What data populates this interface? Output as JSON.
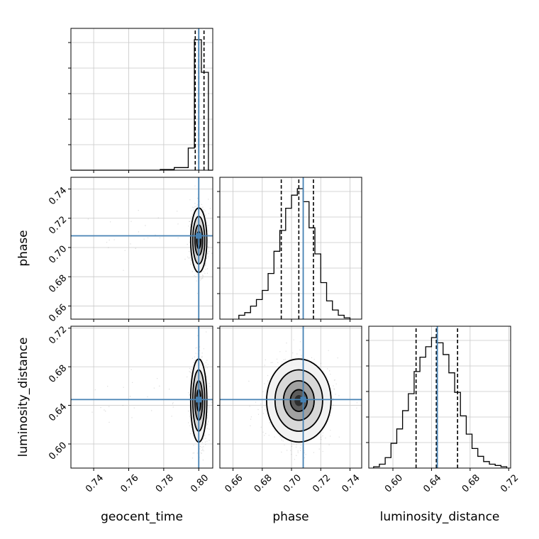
{
  "chart_data": {
    "type": "corner",
    "parameters": [
      "geocent_time",
      "phase",
      "luminosity_distance"
    ],
    "truth": {
      "geocent_time": 0.8,
      "phase": 0.708,
      "luminosity_distance": 0.646
    },
    "colors": {
      "truth": "#4682b4",
      "hist": "#000000",
      "grid": "#c8c8c8"
    },
    "grid": true,
    "axes": {
      "geocent_time": {
        "xlim": [
          0.727,
          0.808
        ],
        "xticks": [
          "0.74",
          "0.76",
          "0.78",
          "0.80"
        ]
      },
      "phase": {
        "lim": [
          0.651,
          0.748
        ],
        "ticks": [
          "0.66",
          "0.68",
          "0.70",
          "0.72",
          "0.74"
        ]
      },
      "luminosity_distance": {
        "lim": [
          0.575,
          0.722
        ],
        "ticks": [
          "0.60",
          "0.64",
          "0.68",
          "0.72"
        ]
      }
    },
    "histograms": {
      "geocent_time": {
        "quantiles": [
          0.798,
          0.8,
          0.803
        ],
        "bins": [
          {
            "x0": 0.778,
            "x1": 0.786,
            "h": 0.005
          },
          {
            "x0": 0.786,
            "x1": 0.794,
            "h": 0.02
          },
          {
            "x0": 0.794,
            "x1": 0.7975,
            "h": 0.17
          },
          {
            "x0": 0.7975,
            "x1": 0.8015,
            "h": 1.0
          },
          {
            "x0": 0.8015,
            "x1": 0.8055,
            "h": 0.75
          },
          {
            "x0": 0.8055,
            "x1": 0.808,
            "h": 0.0
          }
        ]
      },
      "phase": {
        "quantiles": [
          0.693,
          0.705,
          0.715
        ],
        "bins": [
          {
            "x0": 0.664,
            "x1": 0.668,
            "h": 0.03
          },
          {
            "x0": 0.668,
            "x1": 0.672,
            "h": 0.05
          },
          {
            "x0": 0.672,
            "x1": 0.676,
            "h": 0.1
          },
          {
            "x0": 0.676,
            "x1": 0.68,
            "h": 0.15
          },
          {
            "x0": 0.68,
            "x1": 0.684,
            "h": 0.22
          },
          {
            "x0": 0.684,
            "x1": 0.688,
            "h": 0.35
          },
          {
            "x0": 0.688,
            "x1": 0.692,
            "h": 0.52
          },
          {
            "x0": 0.692,
            "x1": 0.696,
            "h": 0.68
          },
          {
            "x0": 0.696,
            "x1": 0.7,
            "h": 0.85
          },
          {
            "x0": 0.7,
            "x1": 0.704,
            "h": 0.95
          },
          {
            "x0": 0.704,
            "x1": 0.708,
            "h": 1.0
          },
          {
            "x0": 0.708,
            "x1": 0.712,
            "h": 0.9
          },
          {
            "x0": 0.712,
            "x1": 0.716,
            "h": 0.7
          },
          {
            "x0": 0.716,
            "x1": 0.72,
            "h": 0.5
          },
          {
            "x0": 0.72,
            "x1": 0.724,
            "h": 0.28
          },
          {
            "x0": 0.724,
            "x1": 0.728,
            "h": 0.14
          },
          {
            "x0": 0.728,
            "x1": 0.732,
            "h": 0.07
          },
          {
            "x0": 0.732,
            "x1": 0.736,
            "h": 0.03
          },
          {
            "x0": 0.736,
            "x1": 0.74,
            "h": 0.01
          }
        ]
      },
      "luminosity_distance": {
        "quantiles": [
          0.624,
          0.645,
          0.667
        ],
        "bins": [
          {
            "x0": 0.58,
            "x1": 0.586,
            "h": 0.01
          },
          {
            "x0": 0.586,
            "x1": 0.592,
            "h": 0.03
          },
          {
            "x0": 0.592,
            "x1": 0.598,
            "h": 0.08
          },
          {
            "x0": 0.598,
            "x1": 0.604,
            "h": 0.19
          },
          {
            "x0": 0.604,
            "x1": 0.61,
            "h": 0.3
          },
          {
            "x0": 0.61,
            "x1": 0.616,
            "h": 0.44
          },
          {
            "x0": 0.616,
            "x1": 0.622,
            "h": 0.57
          },
          {
            "x0": 0.622,
            "x1": 0.628,
            "h": 0.74
          },
          {
            "x0": 0.628,
            "x1": 0.634,
            "h": 0.85
          },
          {
            "x0": 0.634,
            "x1": 0.64,
            "h": 0.93
          },
          {
            "x0": 0.64,
            "x1": 0.646,
            "h": 1.0
          },
          {
            "x0": 0.646,
            "x1": 0.652,
            "h": 0.96
          },
          {
            "x0": 0.652,
            "x1": 0.658,
            "h": 0.87
          },
          {
            "x0": 0.658,
            "x1": 0.664,
            "h": 0.73
          },
          {
            "x0": 0.664,
            "x1": 0.67,
            "h": 0.58
          },
          {
            "x0": 0.67,
            "x1": 0.676,
            "h": 0.4
          },
          {
            "x0": 0.676,
            "x1": 0.682,
            "h": 0.26
          },
          {
            "x0": 0.682,
            "x1": 0.688,
            "h": 0.15
          },
          {
            "x0": 0.688,
            "x1": 0.694,
            "h": 0.09
          },
          {
            "x0": 0.694,
            "x1": 0.7,
            "h": 0.05
          },
          {
            "x0": 0.7,
            "x1": 0.706,
            "h": 0.03
          },
          {
            "x0": 0.706,
            "x1": 0.712,
            "h": 0.02
          },
          {
            "x0": 0.712,
            "x1": 0.718,
            "h": 0.01
          }
        ]
      }
    },
    "density_2d": {
      "geocent_time_phase": {
        "center": [
          0.8,
          0.705
        ],
        "sigma": [
          0.0022,
          0.0105
        ]
      },
      "geocent_time_luminosity_distance": {
        "center": [
          0.8,
          0.645
        ],
        "sigma": [
          0.0022,
          0.0205
        ]
      },
      "phase_luminosity_distance": {
        "center": [
          0.705,
          0.645
        ],
        "sigma": [
          0.0105,
          0.0205
        ]
      }
    }
  }
}
